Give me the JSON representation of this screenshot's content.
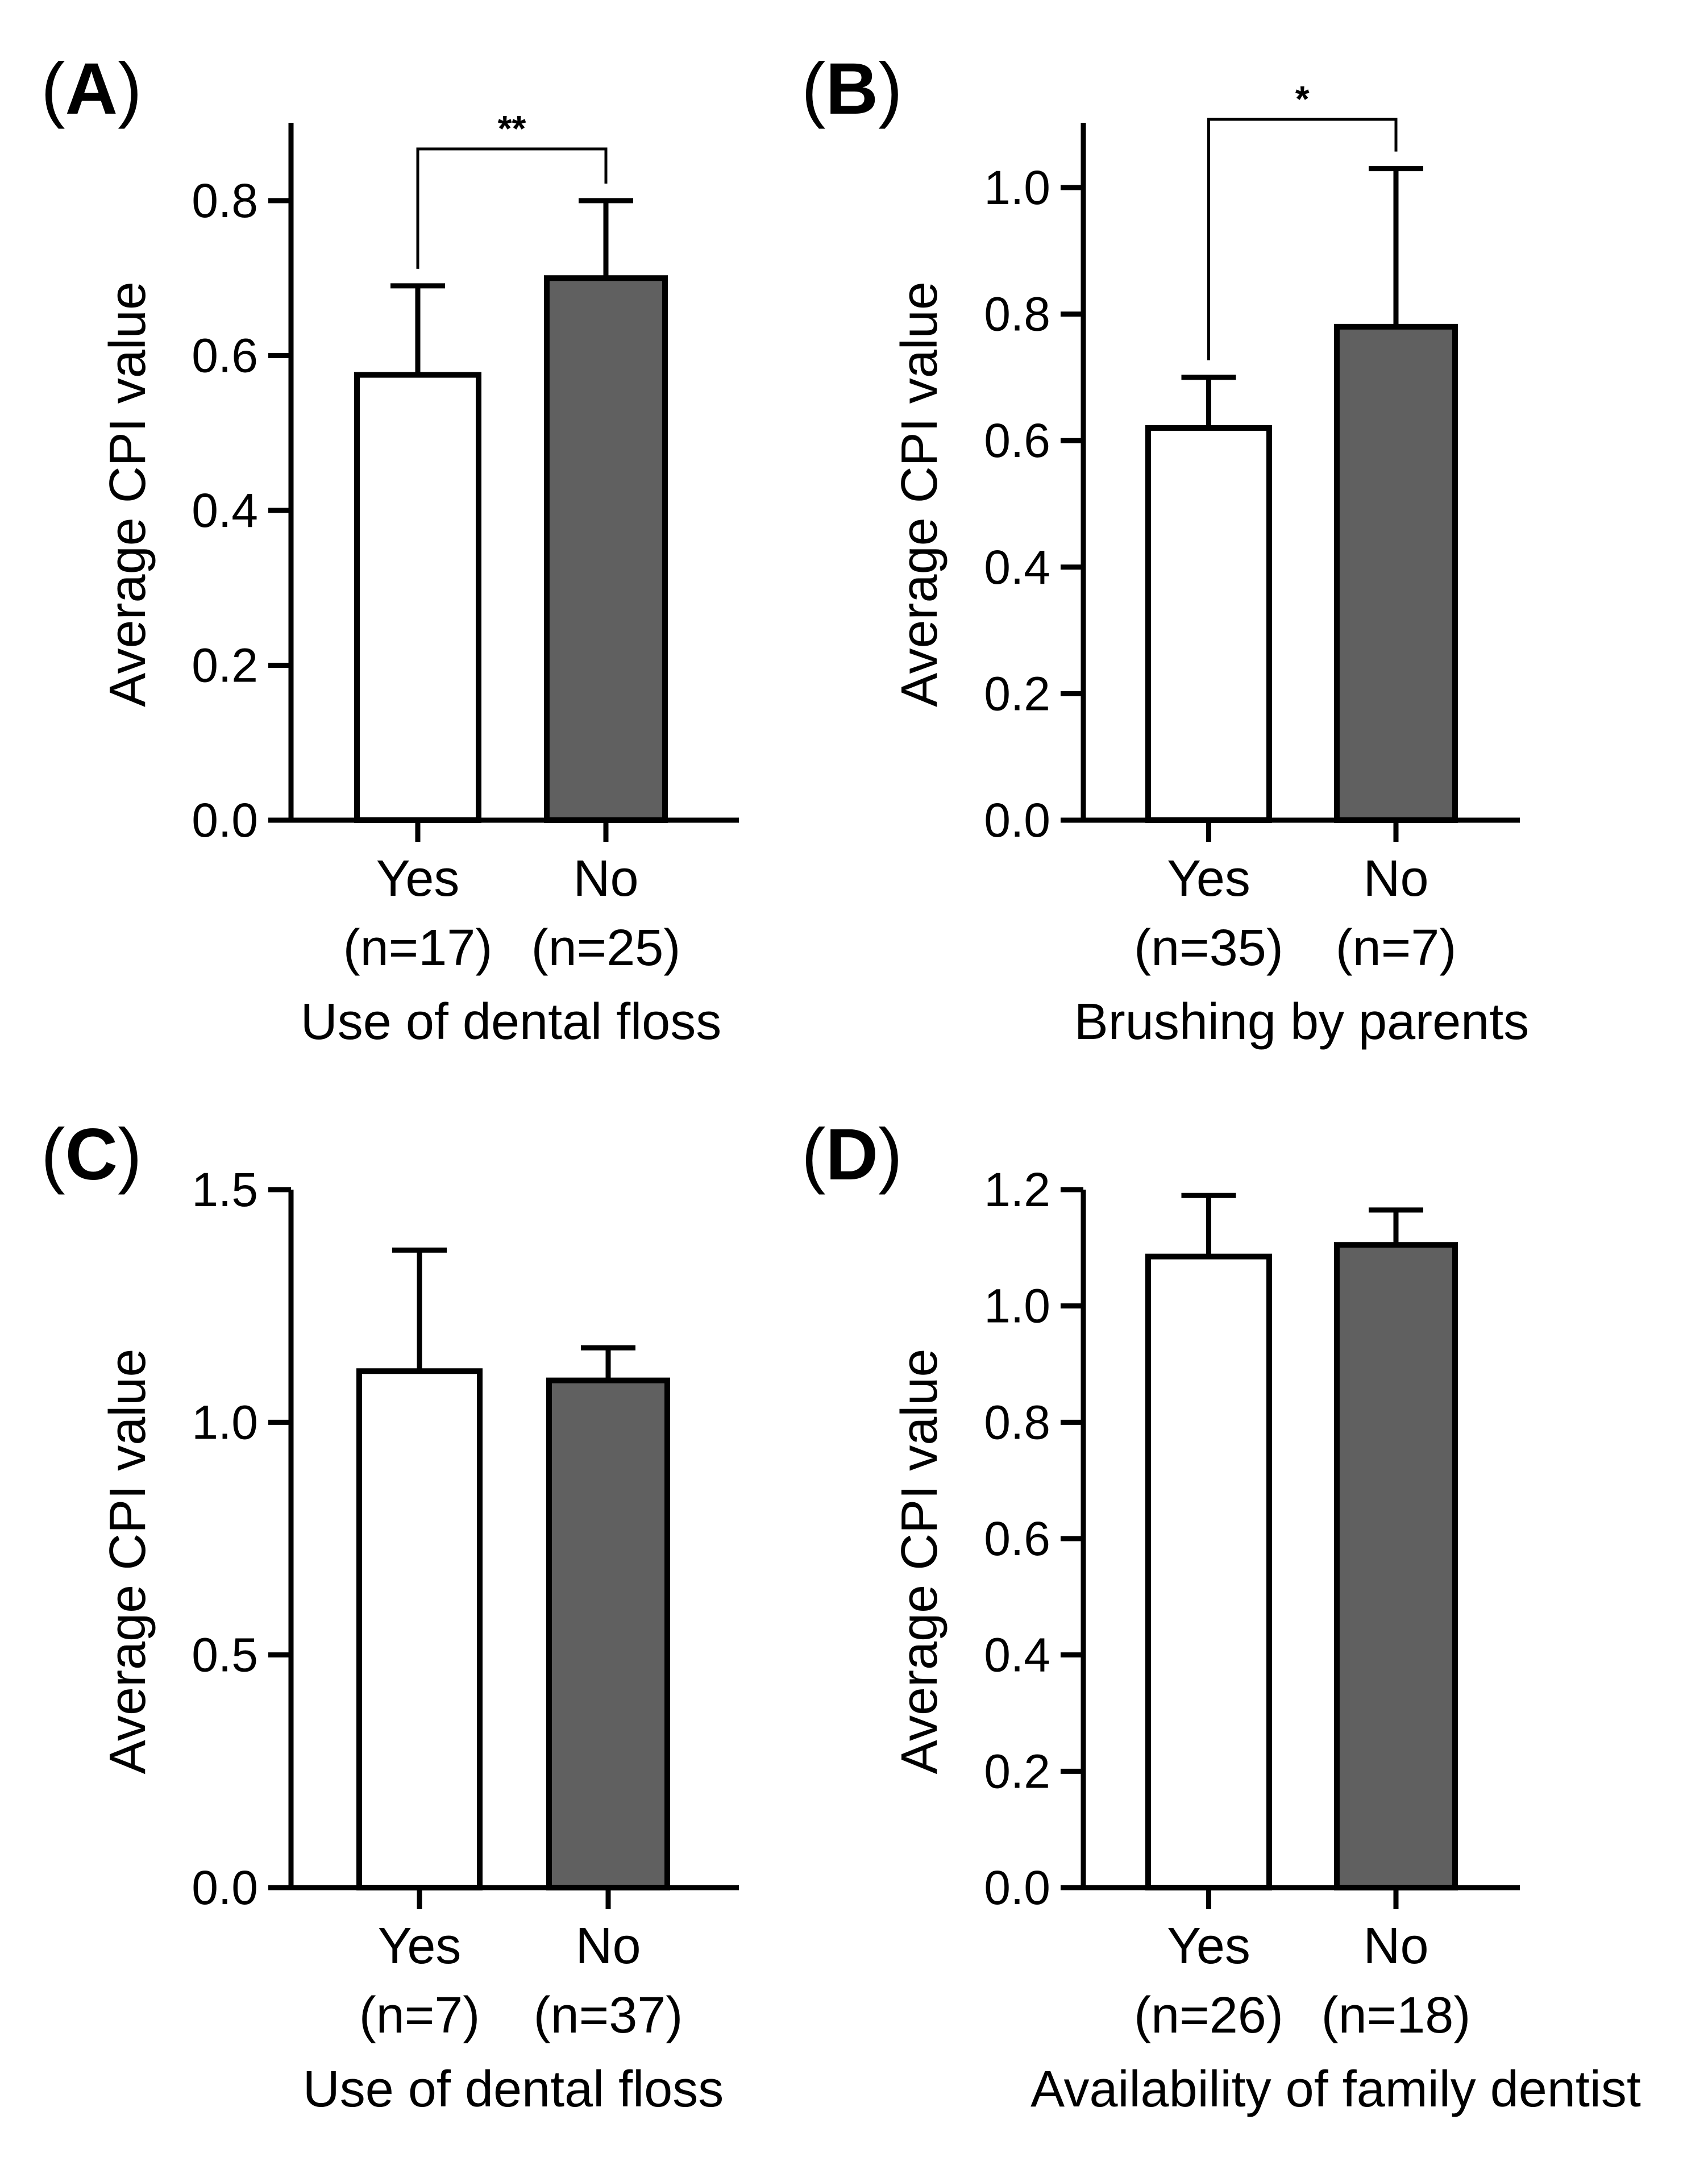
{
  "chart_data": [
    {
      "type": "bar",
      "panel": "A",
      "ylabel": "Average CPI value",
      "xlabel": "Use of dental floss",
      "ylim": [
        0,
        0.9
      ],
      "yticks": [
        0.0,
        0.2,
        0.4,
        0.6,
        0.8
      ],
      "tick_labels": [
        "0.0",
        "0.2",
        "0.4",
        "0.6",
        "0.8"
      ],
      "categories": [
        "Yes",
        "No"
      ],
      "n_labels": [
        "(n=17)",
        "(n=25)"
      ],
      "values": [
        0.575,
        0.7
      ],
      "errors": [
        0.115,
        0.1
      ],
      "significance": "**"
    },
    {
      "type": "bar",
      "panel": "B",
      "ylabel": "Average CPI value",
      "xlabel": "Brushing by parents",
      "ylim": [
        0,
        1.1
      ],
      "yticks": [
        0.0,
        0.2,
        0.4,
        0.6,
        0.8,
        1.0
      ],
      "tick_labels": [
        "0.0",
        "0.2",
        "0.4",
        "0.6",
        "0.8",
        "1.0"
      ],
      "categories": [
        "Yes",
        "No"
      ],
      "n_labels": [
        "(n=35)",
        "(n=7)"
      ],
      "values": [
        0.62,
        0.78
      ],
      "errors": [
        0.08,
        0.25
      ],
      "significance": "*"
    },
    {
      "type": "bar",
      "panel": "C",
      "ylabel": "Average CPI value",
      "xlabel": "Use of dental floss",
      "ylim": [
        0,
        1.5
      ],
      "yticks": [
        0.0,
        0.5,
        1.0,
        1.5
      ],
      "tick_labels": [
        "0.0",
        "0.5",
        "1.0",
        "1.5"
      ],
      "categories": [
        "Yes",
        "No"
      ],
      "n_labels": [
        "(n=7)",
        "(n=37)"
      ],
      "values": [
        1.11,
        1.09
      ],
      "errors": [
        0.26,
        0.07
      ],
      "significance": ""
    },
    {
      "type": "bar",
      "panel": "D",
      "ylabel": "Average CPI value",
      "xlabel": "Availability of family dentist",
      "ylim": [
        0,
        1.2
      ],
      "yticks": [
        0.0,
        0.2,
        0.4,
        0.6,
        0.8,
        1.0,
        1.2
      ],
      "tick_labels": [
        "0.0",
        "0.2",
        "0.4",
        "0.6",
        "0.8",
        "1.0",
        "1.2"
      ],
      "categories": [
        "Yes",
        "No"
      ],
      "n_labels": [
        "(n=26)",
        "(n=18)"
      ],
      "values": [
        1.085,
        1.105
      ],
      "errors": [
        0.105,
        0.06
      ],
      "significance": ""
    }
  ],
  "colors": {
    "bar_yes": "#ffffff",
    "bar_no": "#606060",
    "stroke": "#000000"
  }
}
